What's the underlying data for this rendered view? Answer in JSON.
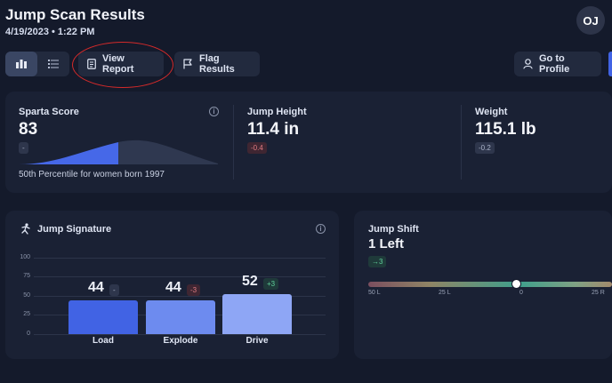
{
  "header": {
    "title": "Jump Scan Results",
    "datetime": "4/19/2023 • 1:22 PM",
    "avatar_initials": "OJ"
  },
  "toolbar": {
    "view_modes": [
      {
        "icon": "bar-chart-icon",
        "active": true
      },
      {
        "icon": "list-icon",
        "active": false
      }
    ],
    "view_report": {
      "label": "View Report",
      "icon": "document-icon"
    },
    "flag_results": {
      "label": "Flag Results",
      "icon": "flag-icon"
    },
    "go_to_profile": {
      "label": "Go to Profile",
      "icon": "user-icon"
    }
  },
  "summary": {
    "sparta_score": {
      "label": "Sparta Score",
      "value": "83",
      "delta": "-",
      "percentile_text": "50th Percentile for women born 1997",
      "percentile": 50
    },
    "jump_height": {
      "label": "Jump Height",
      "value": "11.4 in",
      "delta": "-0.4"
    },
    "weight": {
      "label": "Weight",
      "value": "115.1 lb",
      "delta": "-0.2"
    }
  },
  "jump_signature": {
    "label": "Jump Signature",
    "y_ticks": [
      "100",
      "75",
      "50",
      "25",
      "0"
    ],
    "bars": [
      {
        "name": "Load",
        "value": "44",
        "delta": "-",
        "delta_type": "neutral",
        "color": "#4163e4"
      },
      {
        "name": "Explode",
        "value": "44",
        "delta": "-3",
        "delta_type": "red",
        "color": "#6d8bef"
      },
      {
        "name": "Drive",
        "value": "52",
        "delta": "+3",
        "delta_type": "green",
        "color": "#8ea6f5"
      }
    ]
  },
  "jump_shift": {
    "label": "Jump Shift",
    "value": "1 Left",
    "delta": "→3",
    "ticks": [
      "50 L",
      "25 L",
      "0",
      "25 R"
    ],
    "position": -1
  },
  "colors": {
    "background": "#141a2b",
    "card": "#1a2134",
    "accent_blue": "#4163e4",
    "annotation_red": "#d32a2a"
  }
}
